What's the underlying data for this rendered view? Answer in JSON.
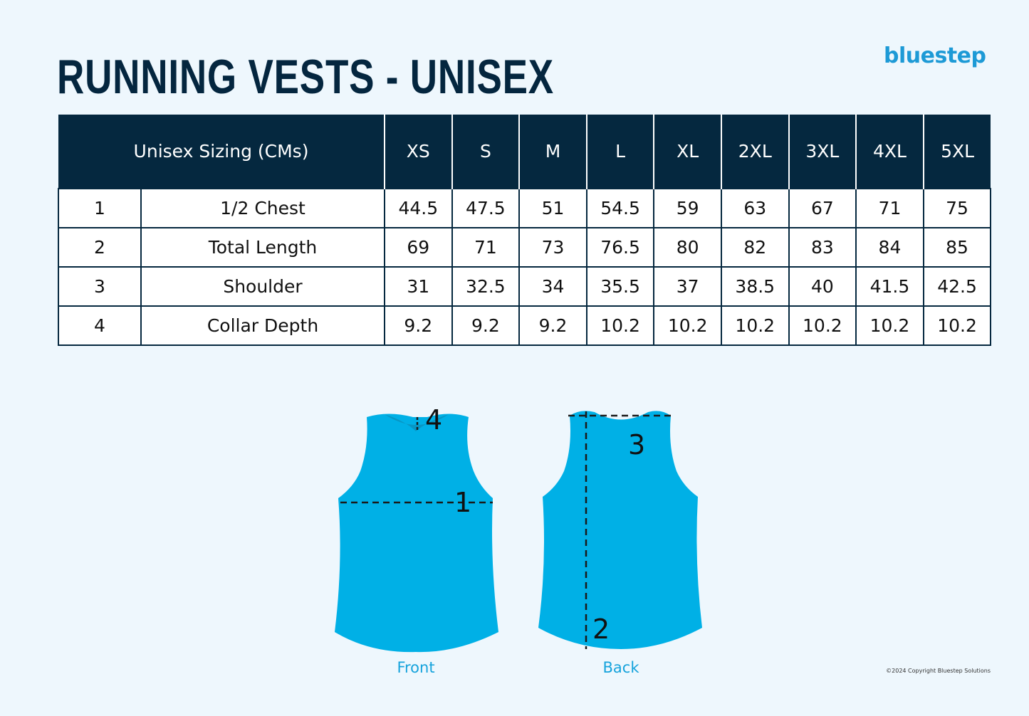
{
  "title": "RUNNING VESTS - UNISEX",
  "brand": "bluestep",
  "table": {
    "header_label": "Unisex Sizing (CMs)",
    "sizes": [
      "XS",
      "S",
      "M",
      "L",
      "XL",
      "2XL",
      "3XL",
      "4XL",
      "5XL"
    ],
    "rows": [
      {
        "num": "1",
        "label": "1/2 Chest",
        "values": [
          "44.5",
          "47.5",
          "51",
          "54.5",
          "59",
          "63",
          "67",
          "71",
          "75"
        ]
      },
      {
        "num": "2",
        "label": "Total Length",
        "values": [
          "69",
          "71",
          "73",
          "76.5",
          "80",
          "82",
          "83",
          "84",
          "85"
        ]
      },
      {
        "num": "3",
        "label": "Shoulder",
        "values": [
          "31",
          "32.5",
          "34",
          "35.5",
          "37",
          "38.5",
          "40",
          "41.5",
          "42.5"
        ]
      },
      {
        "num": "4",
        "label": "Collar Depth",
        "values": [
          "9.2",
          "9.2",
          "9.2",
          "10.2",
          "10.2",
          "10.2",
          "10.2",
          "10.2",
          "10.2"
        ]
      }
    ]
  },
  "diagram": {
    "front_caption": "Front",
    "back_caption": "Back",
    "markers": {
      "chest": "1",
      "length": "2",
      "shoulder": "3",
      "collar": "4"
    },
    "vest_color": "#00b0e6"
  },
  "copyright": "©2024 Copyright Bluestep Solutions",
  "colors": {
    "navy": "#05283f",
    "background": "#eef7fd",
    "accent": "#1d9ad6"
  }
}
